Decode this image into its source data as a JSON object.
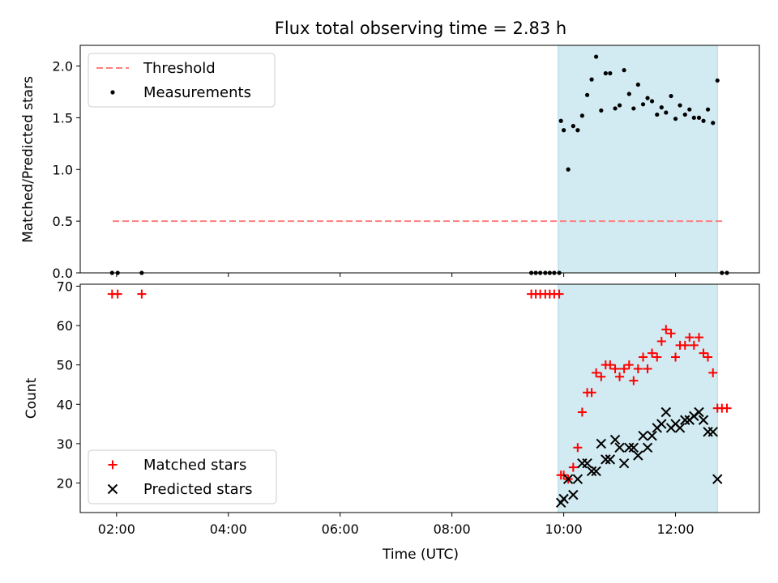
{
  "chart_data": [
    {
      "type": "scatter",
      "panel": "top",
      "title": "Flux total observing time = 2.83 h",
      "xlabel": "",
      "ylabel": "Matched/Predicted stars",
      "ylim": [
        0,
        2.2
      ],
      "yticks": [
        0.0,
        0.5,
        1.0,
        1.5,
        2.0
      ],
      "ytick_labels": [
        "0.0",
        "0.5",
        "1.0",
        "1.5",
        "2.0"
      ],
      "xlim_hours": [
        1.35,
        13.5
      ],
      "shaded_span_hours": [
        9.9,
        12.75
      ],
      "shaded_color": "#add8e6",
      "threshold": {
        "name": "Threshold",
        "value": 0.5,
        "x_range_hours": [
          1.93,
          12.87
        ],
        "color": "#ff7f7f"
      },
      "series": [
        {
          "name": "Measurements",
          "color": "#000000",
          "x_hours": [
            1.92,
            2.02,
            2.45,
            9.42,
            9.5,
            9.58,
            9.67,
            9.75,
            9.83,
            9.92,
            9.95,
            10.0,
            10.08,
            10.17,
            10.25,
            10.33,
            10.42,
            10.5,
            10.58,
            10.67,
            10.75,
            10.83,
            10.92,
            11.0,
            11.08,
            11.17,
            11.25,
            11.33,
            11.42,
            11.5,
            11.58,
            11.67,
            11.75,
            11.83,
            11.92,
            12.0,
            12.08,
            12.17,
            12.25,
            12.33,
            12.42,
            12.5,
            12.58,
            12.67,
            12.75,
            12.83,
            12.92
          ],
          "values": [
            0.0,
            0.0,
            0.0,
            0.0,
            0.0,
            0.0,
            0.0,
            0.0,
            0.0,
            0.0,
            1.47,
            1.38,
            1.0,
            1.42,
            1.38,
            1.52,
            1.72,
            1.87,
            2.09,
            1.57,
            1.93,
            1.93,
            1.59,
            1.62,
            1.96,
            1.73,
            1.59,
            1.82,
            1.63,
            1.69,
            1.66,
            1.53,
            1.6,
            1.55,
            1.71,
            1.49,
            1.62,
            1.53,
            1.58,
            1.5,
            1.5,
            1.47,
            1.58,
            1.45,
            1.86,
            0.0,
            0.0
          ]
        }
      ],
      "legend": {
        "placement": "top-left",
        "entries": [
          "Threshold",
          "Measurements"
        ]
      }
    },
    {
      "type": "scatter",
      "panel": "bottom",
      "title": "",
      "xlabel": "Time (UTC)",
      "ylabel": "Count",
      "ylim": [
        12.5,
        70.5
      ],
      "yticks": [
        20,
        30,
        40,
        50,
        60,
        70
      ],
      "ytick_labels": [
        "20",
        "30",
        "40",
        "50",
        "60",
        "70"
      ],
      "xlim_hours": [
        1.35,
        13.5
      ],
      "xticks_hours": [
        2,
        4,
        6,
        8,
        10,
        12
      ],
      "xtick_labels": [
        "02:00",
        "04:00",
        "06:00",
        "08:00",
        "10:00",
        "12:00"
      ],
      "shaded_span_hours": [
        9.9,
        12.75
      ],
      "shaded_color": "#add8e6",
      "series": [
        {
          "name": "Matched stars",
          "marker": "+",
          "color": "#ff0000",
          "x_hours": [
            1.92,
            2.02,
            2.45,
            9.42,
            9.5,
            9.58,
            9.67,
            9.75,
            9.83,
            9.92,
            9.95,
            10.0,
            10.08,
            10.17,
            10.25,
            10.33,
            10.42,
            10.5,
            10.58,
            10.67,
            10.75,
            10.83,
            10.92,
            11.0,
            11.08,
            11.17,
            11.25,
            11.33,
            11.42,
            11.5,
            11.58,
            11.67,
            11.75,
            11.83,
            11.92,
            12.0,
            12.08,
            12.17,
            12.25,
            12.33,
            12.42,
            12.5,
            12.58,
            12.67,
            12.75,
            12.83,
            12.92
          ],
          "values": [
            68,
            68,
            68,
            68,
            68,
            68,
            68,
            68,
            68,
            68,
            22,
            22,
            21,
            24,
            29,
            38,
            43,
            43,
            48,
            47,
            50,
            50,
            49,
            47,
            49,
            50,
            46,
            49,
            52,
            49,
            53,
            52,
            56,
            59,
            58,
            52,
            55,
            55,
            57,
            55,
            57,
            53,
            52,
            48,
            39,
            39,
            39
          ]
        },
        {
          "name": "Predicted stars",
          "marker": "x",
          "color": "#000000",
          "x_hours": [
            9.95,
            10.0,
            10.08,
            10.17,
            10.25,
            10.33,
            10.42,
            10.5,
            10.58,
            10.67,
            10.75,
            10.83,
            10.92,
            11.0,
            11.08,
            11.17,
            11.25,
            11.33,
            11.42,
            11.5,
            11.58,
            11.67,
            11.75,
            11.83,
            11.92,
            12.0,
            12.08,
            12.17,
            12.25,
            12.33,
            12.42,
            12.5,
            12.58,
            12.67,
            12.75
          ],
          "values": [
            15,
            16,
            21,
            17,
            21,
            25,
            25,
            23,
            23,
            30,
            26,
            26,
            31,
            29,
            25,
            29,
            29,
            27,
            32,
            29,
            32,
            34,
            35,
            38,
            34,
            35,
            34,
            36,
            36,
            37,
            38,
            36,
            33,
            33,
            21
          ]
        }
      ],
      "legend": {
        "placement": "bottom-left",
        "entries": [
          "Matched stars",
          "Predicted stars"
        ]
      }
    }
  ]
}
